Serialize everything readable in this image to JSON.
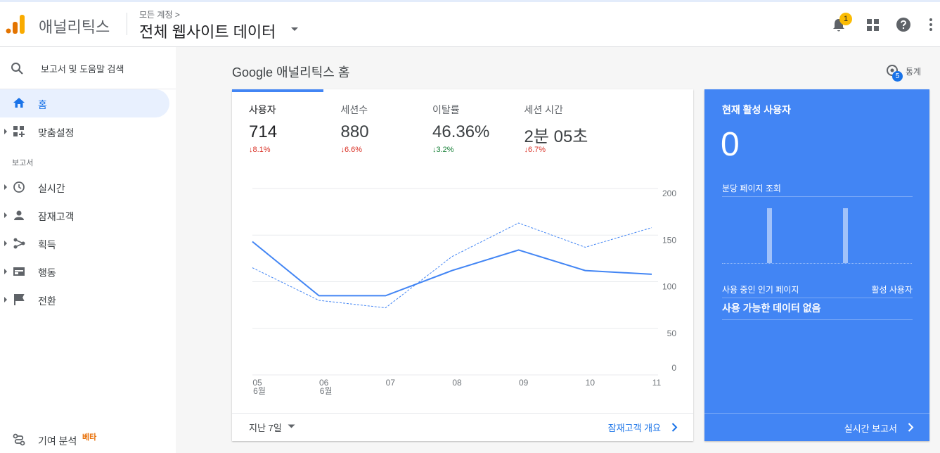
{
  "header": {
    "app_name": "애널리틱스",
    "breadcrumb": "모든 계정 >",
    "property": "전체 웹사이트 데이터",
    "notification_count": "1"
  },
  "sidebar": {
    "search": "보고서 및 도움말 검색",
    "home": "홈",
    "customization": "맞춤설정",
    "section_label": "보고서",
    "reports": [
      "실시간",
      "잠재고객",
      "획득",
      "행동",
      "전환"
    ],
    "attribution": "기여 분석",
    "attribution_badge": "베타"
  },
  "main": {
    "title": "Google 애널리틱스 홈",
    "insights": "통계",
    "insights_count": "5",
    "metrics": [
      {
        "label": "사용자",
        "value": "714",
        "change": "↓8.1%",
        "color": "#d93025"
      },
      {
        "label": "세션수",
        "value": "880",
        "change": "↓6.6%",
        "color": "#d93025"
      },
      {
        "label": "이탈률",
        "value": "46.36%",
        "change": "↓3.2%",
        "color": "#188038"
      },
      {
        "label": "세션 시간",
        "value": "2분 05초",
        "change": "↓6.7%",
        "color": "#d93025"
      }
    ],
    "date_range": "지난 7일",
    "overview_link": "잠재고객 개요"
  },
  "chart_data": {
    "type": "line",
    "categories": [
      "05",
      "06",
      "07",
      "08",
      "09",
      "10",
      "11"
    ],
    "category_sublabels": [
      "6월",
      "6월",
      null,
      null,
      null,
      null,
      null
    ],
    "series": [
      {
        "color": "#4285f4",
        "dashed": false,
        "values": [
          143,
          85,
          85,
          112,
          134,
          112,
          108
        ]
      },
      {
        "color": "#4285f4",
        "dashed": true,
        "values": [
          115,
          80,
          72,
          127,
          163,
          137,
          158
        ]
      }
    ],
    "ylim": [
      0,
      200
    ],
    "yticks": [
      0,
      50,
      100,
      150,
      200
    ],
    "grid": true,
    "y_axis_side": "right"
  },
  "realtime": {
    "title": "현재 활성 사용자",
    "active_users": 0,
    "pageviews_title": "분당 페이지 조회",
    "pageviews_per_minute": [
      0,
      0,
      0,
      0,
      0,
      0,
      0,
      1,
      0,
      0,
      0,
      0,
      0,
      0,
      0,
      0,
      0,
      0,
      0,
      1,
      0,
      0,
      0,
      0,
      0,
      0,
      0,
      0,
      0,
      0
    ],
    "top_pages_title": "사용 중인 인기 페이지",
    "active_users_column": "활성 사용자",
    "empty_message": "사용 가능한 데이터 없음",
    "report_link": "실시간 보고서"
  }
}
